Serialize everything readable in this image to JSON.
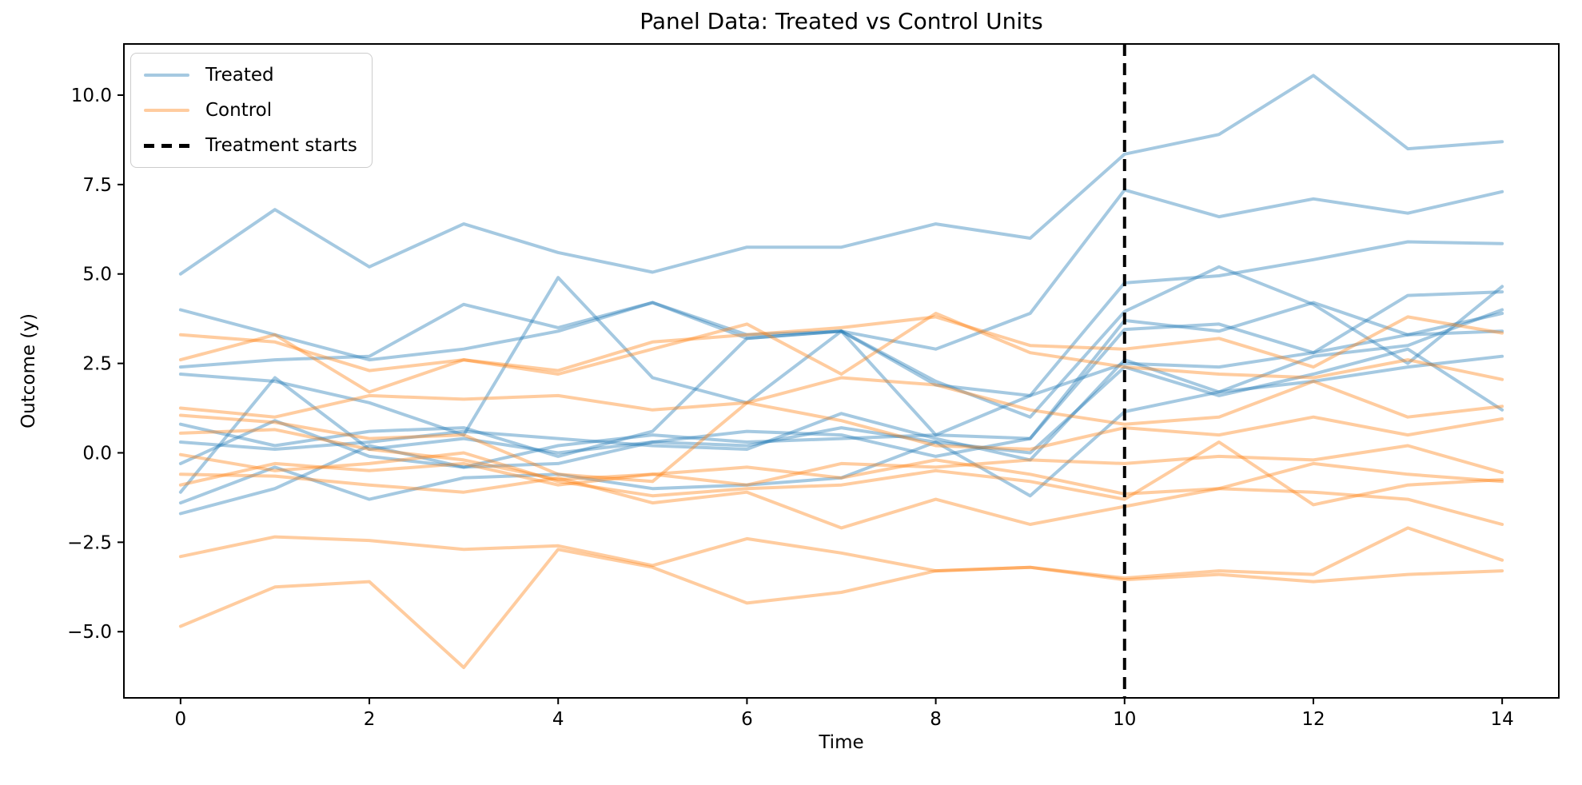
{
  "figure": {
    "title": "Panel Data: Treated vs Control Units",
    "xlabel": "Time",
    "ylabel": "Outcome (y)"
  },
  "legend": {
    "position": "upper left",
    "items": [
      {
        "label": "Treated",
        "swatch": "solid-line",
        "color": "#1f77b4"
      },
      {
        "label": "Control",
        "swatch": "solid-line",
        "color": "#ff7f0e"
      },
      {
        "label": "Treatment starts",
        "swatch": "dashed-line",
        "color": "#000000"
      }
    ]
  },
  "chart_data": {
    "type": "line",
    "title": "Panel Data: Treated vs Control Units",
    "xlabel": "Time",
    "ylabel": "Outcome (y)",
    "grid": false,
    "legend_position": "upper left",
    "x": [
      0,
      1,
      2,
      3,
      4,
      5,
      6,
      7,
      8,
      9,
      10,
      11,
      12,
      13,
      14
    ],
    "xlim": [
      -0.6,
      14.6
    ],
    "ylim": [
      -6.85,
      11.43
    ],
    "xticks": {
      "values": [
        0,
        2,
        4,
        6,
        8,
        10,
        12,
        14
      ],
      "labels": [
        "0",
        "2",
        "4",
        "6",
        "8",
        "10",
        "12",
        "14"
      ]
    },
    "yticks": {
      "values": [
        -5.0,
        -2.5,
        0.0,
        2.5,
        5.0,
        7.5,
        10.0
      ],
      "labels": [
        "−5.0",
        "−2.5",
        "0.0",
        "2.5",
        "5.0",
        "7.5",
        "10.0"
      ]
    },
    "treatment_start_x": 10,
    "styles": {
      "treated_color": "#1f77b4",
      "control_color": "#ff7f0e",
      "line_alpha": 0.4,
      "line_width": 4,
      "vline_color": "#000000",
      "vline_dash": [
        15,
        9
      ],
      "vline_width": 4
    },
    "series": [
      {
        "name": "treated-1",
        "group": "treated",
        "values": [
          5.0,
          6.8,
          5.2,
          6.4,
          5.6,
          5.05,
          5.75,
          5.75,
          6.4,
          6.0,
          8.35,
          8.9,
          10.55,
          8.5,
          8.7
        ]
      },
      {
        "name": "treated-2",
        "group": "treated",
        "values": [
          4.0,
          3.3,
          2.6,
          2.9,
          3.4,
          4.2,
          3.2,
          3.4,
          2.9,
          3.9,
          7.35,
          6.6,
          7.1,
          6.7,
          7.3
        ]
      },
      {
        "name": "treated-3",
        "group": "treated",
        "values": [
          2.4,
          2.6,
          2.7,
          4.15,
          3.5,
          4.2,
          3.3,
          3.4,
          1.9,
          1.6,
          4.75,
          4.95,
          5.4,
          5.9,
          5.85
        ]
      },
      {
        "name": "treated-4",
        "group": "treated",
        "values": [
          2.2,
          2.0,
          1.4,
          0.5,
          4.9,
          2.1,
          1.4,
          3.4,
          2.0,
          1.0,
          3.95,
          5.2,
          4.15,
          2.5,
          4.65
        ]
      },
      {
        "name": "treated-5",
        "group": "treated",
        "values": [
          0.8,
          0.2,
          0.6,
          0.7,
          -0.1,
          0.6,
          3.2,
          3.4,
          0.5,
          0.4,
          3.45,
          3.6,
          2.8,
          4.4,
          4.5
        ]
      },
      {
        "name": "treated-6",
        "group": "treated",
        "values": [
          0.3,
          0.1,
          0.3,
          0.6,
          0.4,
          0.2,
          0.1,
          1.1,
          0.4,
          -0.2,
          2.6,
          1.7,
          2.7,
          3.0,
          4.0
        ]
      },
      {
        "name": "treated-7",
        "group": "treated",
        "values": [
          -0.3,
          0.9,
          -0.1,
          -0.4,
          0.2,
          0.5,
          0.3,
          0.4,
          0.5,
          1.6,
          2.5,
          2.4,
          2.8,
          3.3,
          3.9
        ]
      },
      {
        "name": "treated-8",
        "group": "treated",
        "values": [
          -1.1,
          2.1,
          0.1,
          0.4,
          0.0,
          0.3,
          0.6,
          0.5,
          -0.1,
          0.4,
          3.7,
          3.4,
          4.2,
          3.3,
          3.4
        ]
      },
      {
        "name": "treated-9",
        "group": "treated",
        "values": [
          -1.4,
          -0.4,
          -1.3,
          -0.7,
          -0.6,
          -1.0,
          -0.9,
          -0.7,
          0.3,
          -1.2,
          1.15,
          1.7,
          2.0,
          2.4,
          2.7
        ]
      },
      {
        "name": "treated-10",
        "group": "treated",
        "values": [
          -1.7,
          -1.0,
          0.2,
          -0.4,
          -0.3,
          0.3,
          0.2,
          0.7,
          0.3,
          0.0,
          2.4,
          1.6,
          2.2,
          2.9,
          1.2
        ]
      },
      {
        "name": "control-1",
        "group": "control",
        "values": [
          3.3,
          3.1,
          2.3,
          2.6,
          2.3,
          3.1,
          3.3,
          3.5,
          3.8,
          3.0,
          2.9,
          3.2,
          2.4,
          3.8,
          3.35
        ]
      },
      {
        "name": "control-2",
        "group": "control",
        "values": [
          2.6,
          3.3,
          1.7,
          2.6,
          2.2,
          2.9,
          3.6,
          2.2,
          3.9,
          2.8,
          2.4,
          2.2,
          2.1,
          2.6,
          2.05
        ]
      },
      {
        "name": "control-3",
        "group": "control",
        "values": [
          1.25,
          1.0,
          1.6,
          1.5,
          1.6,
          1.2,
          1.4,
          2.1,
          1.9,
          1.2,
          0.8,
          1.0,
          2.0,
          1.0,
          1.3
        ]
      },
      {
        "name": "control-4",
        "group": "control",
        "values": [
          1.05,
          0.85,
          0.4,
          0.5,
          -0.6,
          -0.8,
          1.4,
          0.9,
          0.2,
          0.1,
          0.7,
          0.5,
          1.0,
          0.5,
          0.95
        ]
      },
      {
        "name": "control-5",
        "group": "control",
        "values": [
          0.55,
          0.65,
          0.1,
          -0.2,
          -0.75,
          -0.6,
          -0.9,
          -0.3,
          -0.4,
          -0.2,
          -0.3,
          -0.1,
          -0.2,
          0.2,
          -0.55
        ]
      },
      {
        "name": "control-6",
        "group": "control",
        "values": [
          -0.05,
          -0.5,
          -0.3,
          0.0,
          -0.8,
          -1.2,
          -1.0,
          -0.9,
          -0.5,
          -0.8,
          -1.3,
          0.3,
          -1.45,
          -0.9,
          -0.75
        ]
      },
      {
        "name": "control-7",
        "group": "control",
        "values": [
          -0.6,
          -0.65,
          -0.9,
          -1.1,
          -0.7,
          -1.4,
          -1.1,
          -2.1,
          -1.3,
          -2.0,
          -1.5,
          -1.0,
          -1.1,
          -1.3,
          -2.0
        ]
      },
      {
        "name": "control-8",
        "group": "control",
        "values": [
          -0.9,
          -0.3,
          -0.5,
          -0.3,
          -0.9,
          -0.6,
          -0.4,
          -0.7,
          -0.2,
          -0.6,
          -1.15,
          -1.0,
          -0.3,
          -0.6,
          -0.8
        ]
      },
      {
        "name": "control-9",
        "group": "control",
        "values": [
          -2.9,
          -2.35,
          -2.45,
          -2.7,
          -2.6,
          -3.15,
          -2.4,
          -2.8,
          -3.3,
          -3.2,
          -3.55,
          -3.4,
          -3.6,
          -3.4,
          -3.3
        ]
      },
      {
        "name": "control-10",
        "group": "control",
        "values": [
          -4.85,
          -3.75,
          -3.6,
          -6.0,
          -2.7,
          -3.2,
          -4.2,
          -3.9,
          -3.3,
          -3.2,
          -3.5,
          -3.3,
          -3.4,
          -2.1,
          -3.0
        ]
      }
    ]
  }
}
